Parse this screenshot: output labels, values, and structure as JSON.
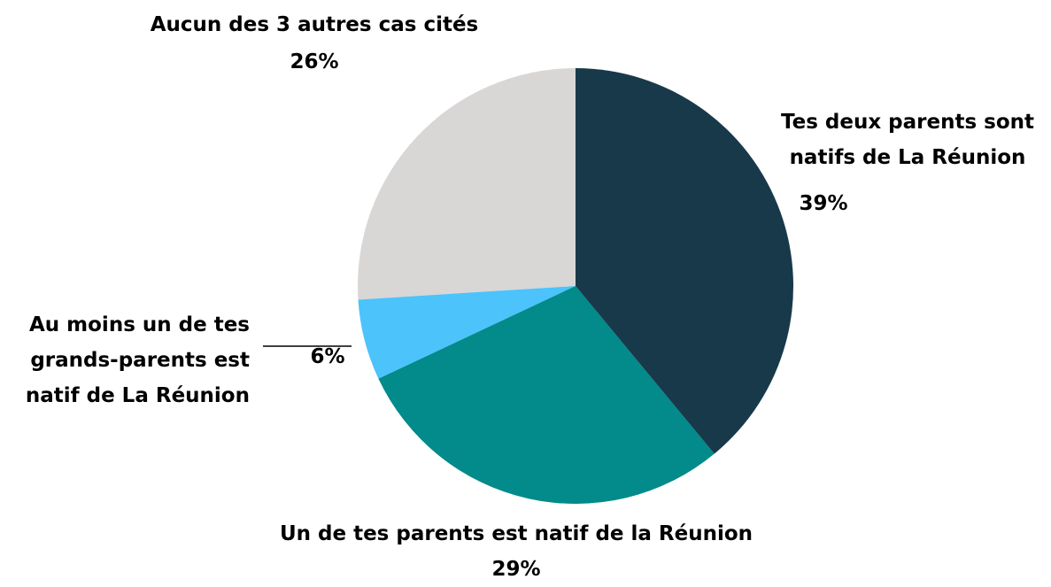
{
  "chart_data": {
    "type": "pie",
    "categories": [
      "Tes deux parents sont natifs de La Réunion",
      "Un de tes parents est natif de la Réunion",
      "Au moins un de tes grands-parents est natif de La Réunion",
      "Aucun des 3 autres cas cités"
    ],
    "values": [
      39,
      29,
      6,
      26
    ],
    "value_labels": [
      "39%",
      "29%",
      "6%",
      "26%"
    ],
    "colors": [
      "#18394a",
      "#038a8a",
      "#4cc3fb",
      "#d9d6d6"
    ]
  }
}
